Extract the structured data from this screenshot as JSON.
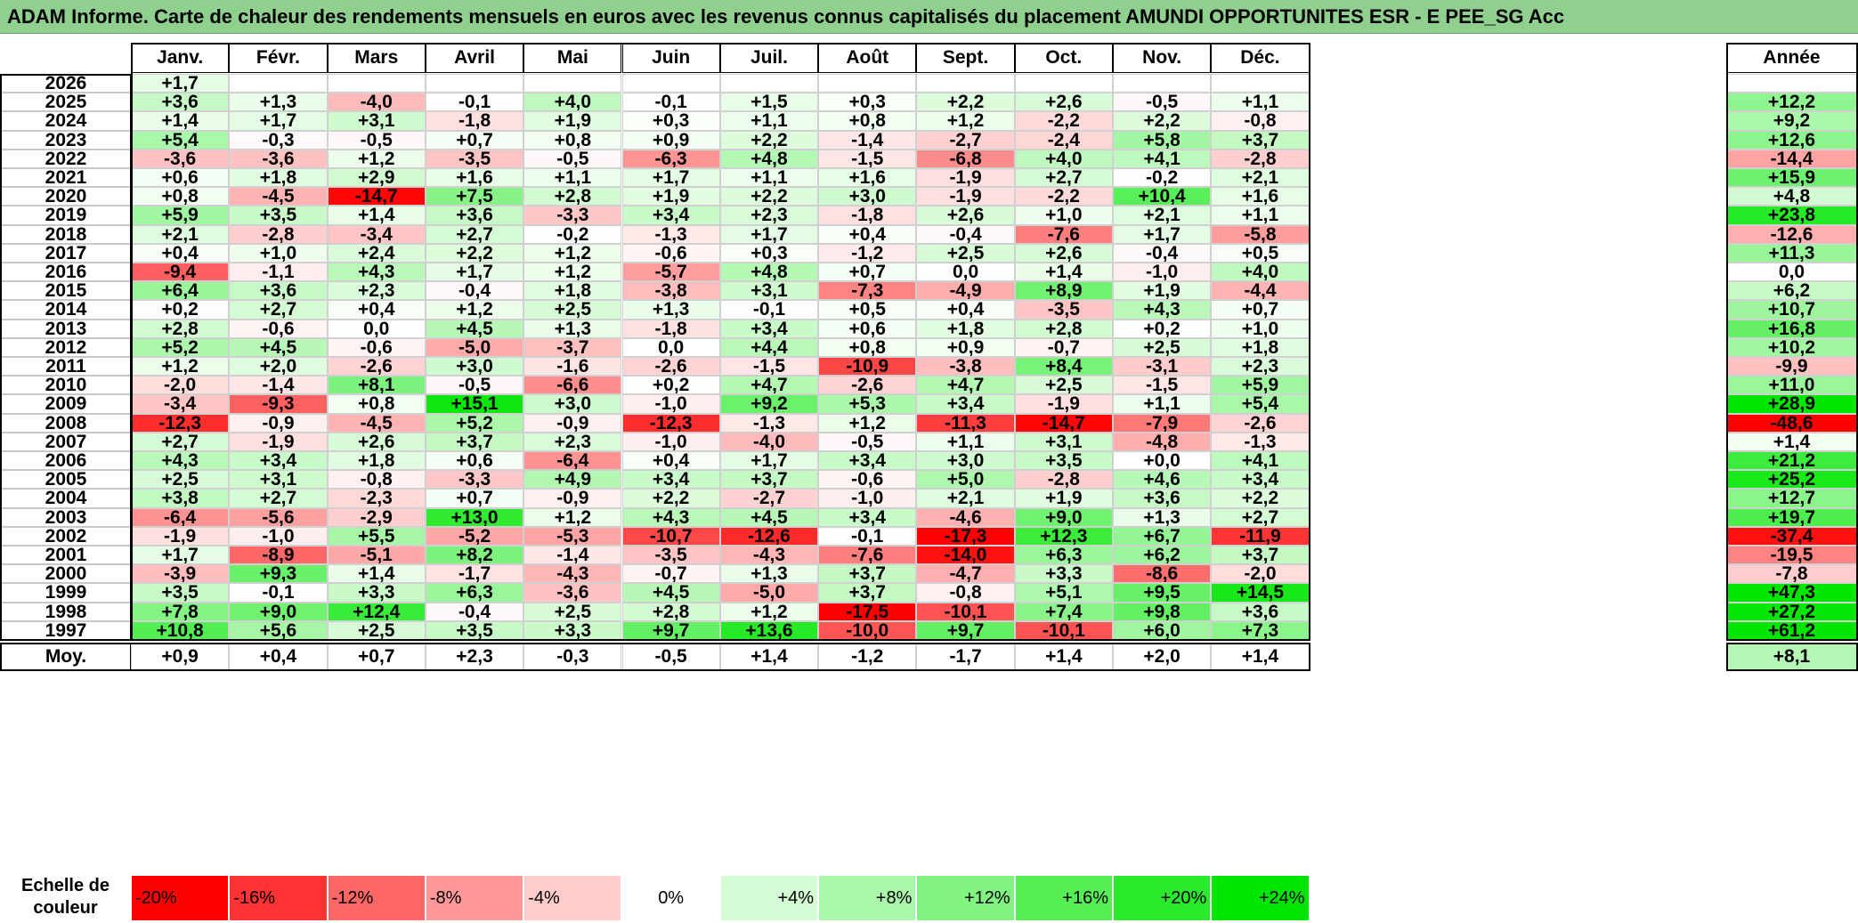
{
  "title": "ADAM Informe. Carte de chaleur des rendements mensuels en euros avec les revenus connus capitalisés du placement AMUNDI OPPORTUNITES ESR - E PEE_SG Acc",
  "chart_data": {
    "type": "heatmap",
    "columns": [
      "Janv.",
      "Févr.",
      "Mars",
      "Avril",
      "Mai",
      "Juin",
      "Juil.",
      "Août",
      "Sept.",
      "Oct.",
      "Nov.",
      "Déc."
    ],
    "annual_label": "Année",
    "years": [
      "2026",
      "2025",
      "2024",
      "2023",
      "2022",
      "2021",
      "2020",
      "2019",
      "2018",
      "2017",
      "2016",
      "2015",
      "2014",
      "2013",
      "2012",
      "2011",
      "2010",
      "2009",
      "2008",
      "2007",
      "2006",
      "2005",
      "2004",
      "2003",
      "2002",
      "2001",
      "2000",
      "1999",
      "1998",
      "1997"
    ],
    "values": [
      [
        "+1,7",
        "",
        "",
        "",
        "",
        "",
        "",
        "",
        "",
        "",
        "",
        ""
      ],
      [
        "+3,6",
        "+1,3",
        "-4,0",
        "-0,1",
        "+4,0",
        "-0,1",
        "+1,5",
        "+0,3",
        "+2,2",
        "+2,6",
        "-0,5",
        "+1,1"
      ],
      [
        "+1,4",
        "+1,7",
        "+3,1",
        "-1,8",
        "+1,9",
        "+0,3",
        "+1,1",
        "+0,8",
        "+1,2",
        "-2,2",
        "+2,2",
        "-0,8"
      ],
      [
        "+5,4",
        "-0,3",
        "-0,5",
        "+0,7",
        "+0,8",
        "+0,9",
        "+2,2",
        "-1,4",
        "-2,7",
        "-2,4",
        "+5,8",
        "+3,7"
      ],
      [
        "-3,6",
        "-3,6",
        "+1,2",
        "-3,5",
        "-0,5",
        "-6,3",
        "+4,8",
        "-1,5",
        "-6,8",
        "+4,0",
        "+4,1",
        "-2,8"
      ],
      [
        "+0,6",
        "+1,8",
        "+2,9",
        "+1,6",
        "+1,1",
        "+1,7",
        "+1,1",
        "+1,6",
        "-1,9",
        "+2,7",
        "-0,2",
        "+2,1"
      ],
      [
        "+0,8",
        "-4,5",
        "-14,7",
        "+7,5",
        "+2,8",
        "+1,9",
        "+2,2",
        "+3,0",
        "-1,9",
        "-2,2",
        "+10,4",
        "+1,6"
      ],
      [
        "+5,9",
        "+3,5",
        "+1,4",
        "+3,6",
        "-3,3",
        "+3,4",
        "+2,3",
        "-1,8",
        "+2,6",
        "+1,0",
        "+2,1",
        "+1,1"
      ],
      [
        "+2,1",
        "-2,8",
        "-3,4",
        "+2,7",
        "-0,2",
        "-1,3",
        "+1,7",
        "+0,4",
        "-0,4",
        "-7,6",
        "+1,7",
        "-5,8"
      ],
      [
        "+0,4",
        "+1,0",
        "+2,4",
        "+2,2",
        "+1,2",
        "-0,6",
        "+0,3",
        "-1,2",
        "+2,5",
        "+2,6",
        "-0,4",
        "+0,5"
      ],
      [
        "-9,4",
        "-1,1",
        "+4,3",
        "+1,7",
        "+1,2",
        "-5,7",
        "+4,8",
        "+0,7",
        "0,0",
        "+1,4",
        "-1,0",
        "+4,0"
      ],
      [
        "+6,4",
        "+3,6",
        "+2,3",
        "-0,4",
        "+1,8",
        "-3,8",
        "+3,1",
        "-7,3",
        "-4,9",
        "+8,9",
        "+1,9",
        "-4,4"
      ],
      [
        "+0,2",
        "+2,7",
        "+0,4",
        "+1,2",
        "+2,5",
        "+1,3",
        "-0,1",
        "+0,5",
        "+0,4",
        "-3,5",
        "+4,3",
        "+0,7"
      ],
      [
        "+2,8",
        "-0,6",
        "0,0",
        "+4,5",
        "+1,3",
        "-1,8",
        "+3,4",
        "+0,6",
        "+1,8",
        "+2,8",
        "+0,2",
        "+1,0"
      ],
      [
        "+5,2",
        "+4,5",
        "-0,6",
        "-5,0",
        "-3,7",
        "0,0",
        "+4,4",
        "+0,8",
        "+0,9",
        "-0,7",
        "+2,5",
        "+1,8"
      ],
      [
        "+1,2",
        "+2,0",
        "-2,6",
        "+3,0",
        "-1,6",
        "-2,6",
        "-1,5",
        "-10,9",
        "-3,8",
        "+8,4",
        "-3,1",
        "+2,3"
      ],
      [
        "-2,0",
        "-1,4",
        "+8,1",
        "-0,5",
        "-6,6",
        "+0,2",
        "+4,7",
        "-2,6",
        "+4,7",
        "+2,5",
        "-1,5",
        "+5,9"
      ],
      [
        "-3,4",
        "-9,3",
        "+0,8",
        "+15,1",
        "+3,0",
        "-1,0",
        "+9,2",
        "+5,3",
        "+3,4",
        "-1,9",
        "+1,1",
        "+5,4"
      ],
      [
        "-12,3",
        "-0,9",
        "-4,5",
        "+5,2",
        "-0,9",
        "-12,3",
        "-1,3",
        "+1,2",
        "-11,3",
        "-14,7",
        "-7,9",
        "-2,6"
      ],
      [
        "+2,7",
        "-1,9",
        "+2,6",
        "+3,7",
        "+2,3",
        "-1,0",
        "-4,0",
        "-0,5",
        "+1,1",
        "+3,1",
        "-4,8",
        "-1,3"
      ],
      [
        "+4,3",
        "+3,4",
        "+1,8",
        "+0,6",
        "-6,4",
        "+0,4",
        "+1,7",
        "+3,4",
        "+3,0",
        "+3,5",
        "+0,0",
        "+4,1"
      ],
      [
        "+2,5",
        "+3,1",
        "-0,8",
        "-3,3",
        "+4,9",
        "+3,4",
        "+3,7",
        "-0,6",
        "+5,0",
        "-2,8",
        "+4,6",
        "+3,4"
      ],
      [
        "+3,8",
        "+2,7",
        "-2,3",
        "+0,7",
        "-0,9",
        "+2,2",
        "-2,7",
        "-1,0",
        "+2,1",
        "+1,9",
        "+3,6",
        "+2,2"
      ],
      [
        "-6,4",
        "-5,6",
        "-2,9",
        "+13,0",
        "+1,2",
        "+4,3",
        "+4,5",
        "+3,4",
        "-4,6",
        "+9,0",
        "+1,3",
        "+2,7"
      ],
      [
        "-1,9",
        "-1,0",
        "+5,5",
        "-5,2",
        "-5,3",
        "-10,7",
        "-12,6",
        "-0,1",
        "-17,3",
        "+12,3",
        "+6,7",
        "-11,9"
      ],
      [
        "+1,7",
        "-8,9",
        "-5,1",
        "+8,2",
        "-1,4",
        "-3,5",
        "-4,3",
        "-7,6",
        "-14,0",
        "+6,3",
        "+6,2",
        "+3,7"
      ],
      [
        "-3,9",
        "+9,3",
        "+1,4",
        "-1,7",
        "-4,3",
        "-0,7",
        "+1,3",
        "+3,7",
        "-4,7",
        "+3,3",
        "-8,6",
        "-2,0"
      ],
      [
        "+3,5",
        "-0,1",
        "+3,3",
        "+6,3",
        "-3,6",
        "+4,5",
        "-5,0",
        "+3,7",
        "-0,8",
        "+5,1",
        "+9,5",
        "+14,5"
      ],
      [
        "+7,8",
        "+9,0",
        "+12,4",
        "-0,4",
        "+2,5",
        "+2,8",
        "+1,2",
        "-17,5",
        "-10,1",
        "+7,4",
        "+9,8",
        "+3,6"
      ],
      [
        "+10,8",
        "+5,6",
        "+2,5",
        "+3,5",
        "+3,3",
        "+9,7",
        "+13,6",
        "-10,0",
        "+9,7",
        "-10,1",
        "+6,0",
        "+7,3"
      ]
    ],
    "annual": [
      "",
      "+12,2",
      "+9,2",
      "+12,6",
      "-14,4",
      "+15,9",
      "+4,8",
      "+23,8",
      "-12,6",
      "+11,3",
      "0,0",
      "+6,2",
      "+10,7",
      "+16,8",
      "+10,2",
      "-9,9",
      "+11,0",
      "+28,9",
      "-48,6",
      "+1,4",
      "+21,2",
      "+25,2",
      "+12,7",
      "+19,7",
      "-37,4",
      "-19,5",
      "-7,8",
      "+47,3",
      "+27,2",
      "+61,2"
    ],
    "average_label": "Moy.",
    "averages": [
      "+0,9",
      "+0,4",
      "+0,7",
      "+2,3",
      "-0,3",
      "-0,5",
      "+1,4",
      "-1,2",
      "-1,7",
      "+1,4",
      "+2,0",
      "+1,4"
    ],
    "average_annual": "+8,1",
    "scale_label": "Echelle de couleur",
    "scale": [
      "-20%",
      "-16%",
      "-12%",
      "-8%",
      "-4%",
      "0%",
      "+4%",
      "+8%",
      "+12%",
      "+16%",
      "+20%",
      "+24%"
    ],
    "colors": {
      "negative_max": "#ff0000",
      "neutral": "#ffffff",
      "positive_max": "#00e600"
    }
  }
}
